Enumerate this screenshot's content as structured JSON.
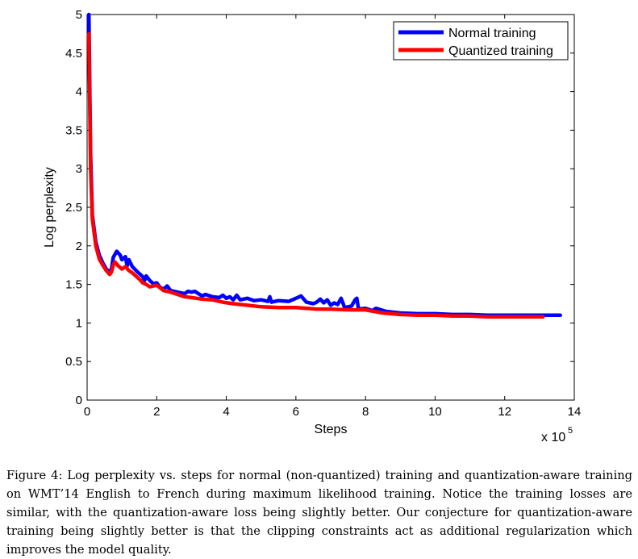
{
  "chart_data": {
    "type": "line",
    "title": "",
    "xlabel": "Steps",
    "ylabel": "Log perplexity",
    "x_multiplier_label": "x 10",
    "x_multiplier_exp": "5",
    "xlim": [
      0,
      14
    ],
    "ylim": [
      0,
      5
    ],
    "xticks": [
      "0",
      "2",
      "4",
      "6",
      "8",
      "10",
      "12",
      "14"
    ],
    "yticks": [
      "0",
      "0.5",
      "1",
      "1.5",
      "2",
      "2.5",
      "3",
      "3.5",
      "4",
      "4.5",
      "5"
    ],
    "grid": false,
    "legend_position": "top-right",
    "series": [
      {
        "name": "Normal training",
        "color": "#0000ff",
        "points": [
          [
            0.05,
            5.0
          ],
          [
            0.1,
            3.2
          ],
          [
            0.15,
            2.4
          ],
          [
            0.25,
            2.05
          ],
          [
            0.35,
            1.88
          ],
          [
            0.45,
            1.78
          ],
          [
            0.55,
            1.7
          ],
          [
            0.65,
            1.66
          ],
          [
            0.7,
            1.7
          ],
          [
            0.75,
            1.85
          ],
          [
            0.85,
            1.93
          ],
          [
            0.95,
            1.88
          ],
          [
            1.0,
            1.82
          ],
          [
            1.1,
            1.86
          ],
          [
            1.15,
            1.74
          ],
          [
            1.2,
            1.82
          ],
          [
            1.3,
            1.73
          ],
          [
            1.45,
            1.66
          ],
          [
            1.55,
            1.62
          ],
          [
            1.6,
            1.6
          ],
          [
            1.65,
            1.55
          ],
          [
            1.7,
            1.61
          ],
          [
            1.8,
            1.55
          ],
          [
            1.9,
            1.51
          ],
          [
            2.0,
            1.52
          ],
          [
            2.1,
            1.46
          ],
          [
            2.2,
            1.44
          ],
          [
            2.3,
            1.48
          ],
          [
            2.4,
            1.42
          ],
          [
            2.6,
            1.4
          ],
          [
            2.8,
            1.38
          ],
          [
            2.9,
            1.41
          ],
          [
            3.0,
            1.4
          ],
          [
            3.1,
            1.41
          ],
          [
            3.3,
            1.35
          ],
          [
            3.4,
            1.37
          ],
          [
            3.6,
            1.34
          ],
          [
            3.8,
            1.33
          ],
          [
            3.9,
            1.36
          ],
          [
            4.0,
            1.32
          ],
          [
            4.1,
            1.34
          ],
          [
            4.2,
            1.3
          ],
          [
            4.3,
            1.36
          ],
          [
            4.4,
            1.3
          ],
          [
            4.6,
            1.32
          ],
          [
            4.8,
            1.29
          ],
          [
            5.0,
            1.3
          ],
          [
            5.2,
            1.28
          ],
          [
            5.25,
            1.34
          ],
          [
            5.3,
            1.27
          ],
          [
            5.5,
            1.29
          ],
          [
            5.8,
            1.28
          ],
          [
            6.0,
            1.32
          ],
          [
            6.15,
            1.35
          ],
          [
            6.3,
            1.27
          ],
          [
            6.5,
            1.25
          ],
          [
            6.6,
            1.27
          ],
          [
            6.7,
            1.31
          ],
          [
            6.8,
            1.26
          ],
          [
            6.9,
            1.3
          ],
          [
            7.0,
            1.23
          ],
          [
            7.1,
            1.26
          ],
          [
            7.2,
            1.24
          ],
          [
            7.3,
            1.32
          ],
          [
            7.4,
            1.2
          ],
          [
            7.6,
            1.22
          ],
          [
            7.7,
            1.3
          ],
          [
            7.75,
            1.32
          ],
          [
            7.8,
            1.18
          ],
          [
            8.0,
            1.19
          ],
          [
            8.2,
            1.16
          ],
          [
            8.3,
            1.19
          ],
          [
            8.6,
            1.15
          ],
          [
            9.0,
            1.13
          ],
          [
            9.5,
            1.12
          ],
          [
            10.0,
            1.12
          ],
          [
            10.5,
            1.11
          ],
          [
            11.0,
            1.11
          ],
          [
            11.5,
            1.1
          ],
          [
            12.0,
            1.1
          ],
          [
            12.5,
            1.1
          ],
          [
            13.0,
            1.1
          ],
          [
            13.6,
            1.1
          ]
        ]
      },
      {
        "name": "Quantized training",
        "color": "#ff0000",
        "points": [
          [
            0.05,
            4.75
          ],
          [
            0.1,
            3.0
          ],
          [
            0.15,
            2.35
          ],
          [
            0.25,
            2.0
          ],
          [
            0.35,
            1.83
          ],
          [
            0.45,
            1.75
          ],
          [
            0.55,
            1.68
          ],
          [
            0.65,
            1.63
          ],
          [
            0.7,
            1.66
          ],
          [
            0.75,
            1.75
          ],
          [
            0.8,
            1.79
          ],
          [
            0.9,
            1.74
          ],
          [
            1.0,
            1.7
          ],
          [
            1.1,
            1.73
          ],
          [
            1.2,
            1.68
          ],
          [
            1.3,
            1.65
          ],
          [
            1.5,
            1.57
          ],
          [
            1.6,
            1.52
          ],
          [
            1.7,
            1.5
          ],
          [
            1.8,
            1.47
          ],
          [
            2.0,
            1.49
          ],
          [
            2.2,
            1.42
          ],
          [
            2.4,
            1.4
          ],
          [
            2.6,
            1.37
          ],
          [
            2.8,
            1.34
          ],
          [
            3.0,
            1.33
          ],
          [
            3.3,
            1.31
          ],
          [
            3.6,
            1.3
          ],
          [
            3.9,
            1.27
          ],
          [
            4.2,
            1.25
          ],
          [
            4.6,
            1.23
          ],
          [
            5.0,
            1.21
          ],
          [
            5.5,
            1.2
          ],
          [
            6.0,
            1.2
          ],
          [
            6.3,
            1.19
          ],
          [
            6.6,
            1.18
          ],
          [
            7.0,
            1.18
          ],
          [
            7.5,
            1.17
          ],
          [
            8.0,
            1.17
          ],
          [
            8.5,
            1.13
          ],
          [
            9.0,
            1.11
          ],
          [
            9.5,
            1.1
          ],
          [
            10.0,
            1.1
          ],
          [
            10.5,
            1.09
          ],
          [
            11.0,
            1.09
          ],
          [
            11.5,
            1.08
          ],
          [
            12.0,
            1.08
          ],
          [
            12.5,
            1.08
          ],
          [
            13.1,
            1.08
          ]
        ]
      }
    ]
  },
  "caption": "Figure 4: Log perplexity vs. steps for normal (non-quantized) training and quantization-aware training on WMT’14 English to French during maximum likelihood training. Notice the training losses are similar, with the quantization-aware loss being slightly better. Our conjecture for quantization-aware training being slightly better is that the clipping constraints act as additional regularization which improves the model quality."
}
